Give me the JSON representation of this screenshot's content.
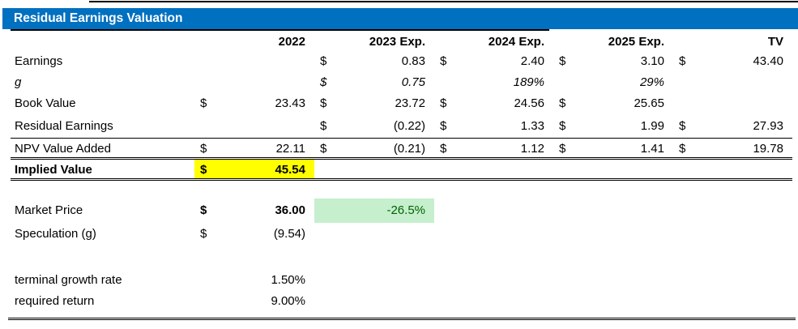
{
  "title": "Residual Earnings Valuation",
  "colors": {
    "title_bg": "#0070C0",
    "title_text": "#FFFFFF",
    "implied_value_highlight": "#FFFF00",
    "premium_cell_bg": "#C6EFCE",
    "premium_cell_text": "#006100"
  },
  "columns": {
    "c2022": "2022",
    "c2023": "2023 Exp.",
    "c2024": "2024 Exp.",
    "c2025": "2025 Exp.",
    "ctv": "TV"
  },
  "rows": {
    "earnings": {
      "label": "Earnings",
      "y2022": {
        "d": "",
        "v": ""
      },
      "y2023": {
        "d": "$",
        "v": "0.83"
      },
      "y2024": {
        "d": "$",
        "v": "2.40"
      },
      "y2025": {
        "d": "$",
        "v": "3.10"
      },
      "tv": {
        "d": "$",
        "v": "43.40"
      }
    },
    "g": {
      "label": "g",
      "y2022": {
        "d": "",
        "v": ""
      },
      "y2023": {
        "d": "$",
        "v": "0.75"
      },
      "y2024": {
        "d": "",
        "v": "189%"
      },
      "y2025": {
        "d": "",
        "v": "29%"
      },
      "tv": {
        "d": "",
        "v": ""
      }
    },
    "book_value": {
      "label": "Book Value",
      "y2022": {
        "d": "$",
        "v": "23.43"
      },
      "y2023": {
        "d": "$",
        "v": "23.72"
      },
      "y2024": {
        "d": "$",
        "v": "24.56"
      },
      "y2025": {
        "d": "$",
        "v": "25.65"
      },
      "tv": {
        "d": "",
        "v": ""
      }
    },
    "residual_earnings": {
      "label": "Residual Earnings",
      "y2022": {
        "d": "",
        "v": ""
      },
      "y2023": {
        "d": "$",
        "v": "(0.22)"
      },
      "y2024": {
        "d": "$",
        "v": "1.33"
      },
      "y2025": {
        "d": "$",
        "v": "1.99"
      },
      "tv": {
        "d": "$",
        "v": "27.93"
      }
    },
    "npv_value_added": {
      "label": "NPV Value Added",
      "y2022": {
        "d": "$",
        "v": "22.11"
      },
      "y2023": {
        "d": "$",
        "v": "(0.21)"
      },
      "y2024": {
        "d": "$",
        "v": "1.12"
      },
      "y2025": {
        "d": "$",
        "v": "1.41"
      },
      "tv": {
        "d": "$",
        "v": "19.78"
      }
    },
    "implied_value": {
      "label": "Implied Value",
      "y2022": {
        "d": "$",
        "v": "45.54"
      }
    },
    "market_price": {
      "label": "Market Price",
      "y2022": {
        "d": "$",
        "v": "36.00"
      },
      "premium_pct": "-26.5%"
    },
    "speculation": {
      "label": "Speculation (g)",
      "y2022": {
        "d": "$",
        "v": "(9.54)"
      }
    },
    "terminal_growth": {
      "label": "terminal growth rate",
      "value": "1.50%"
    },
    "required_return": {
      "label": "required return",
      "value": "9.00%"
    }
  }
}
